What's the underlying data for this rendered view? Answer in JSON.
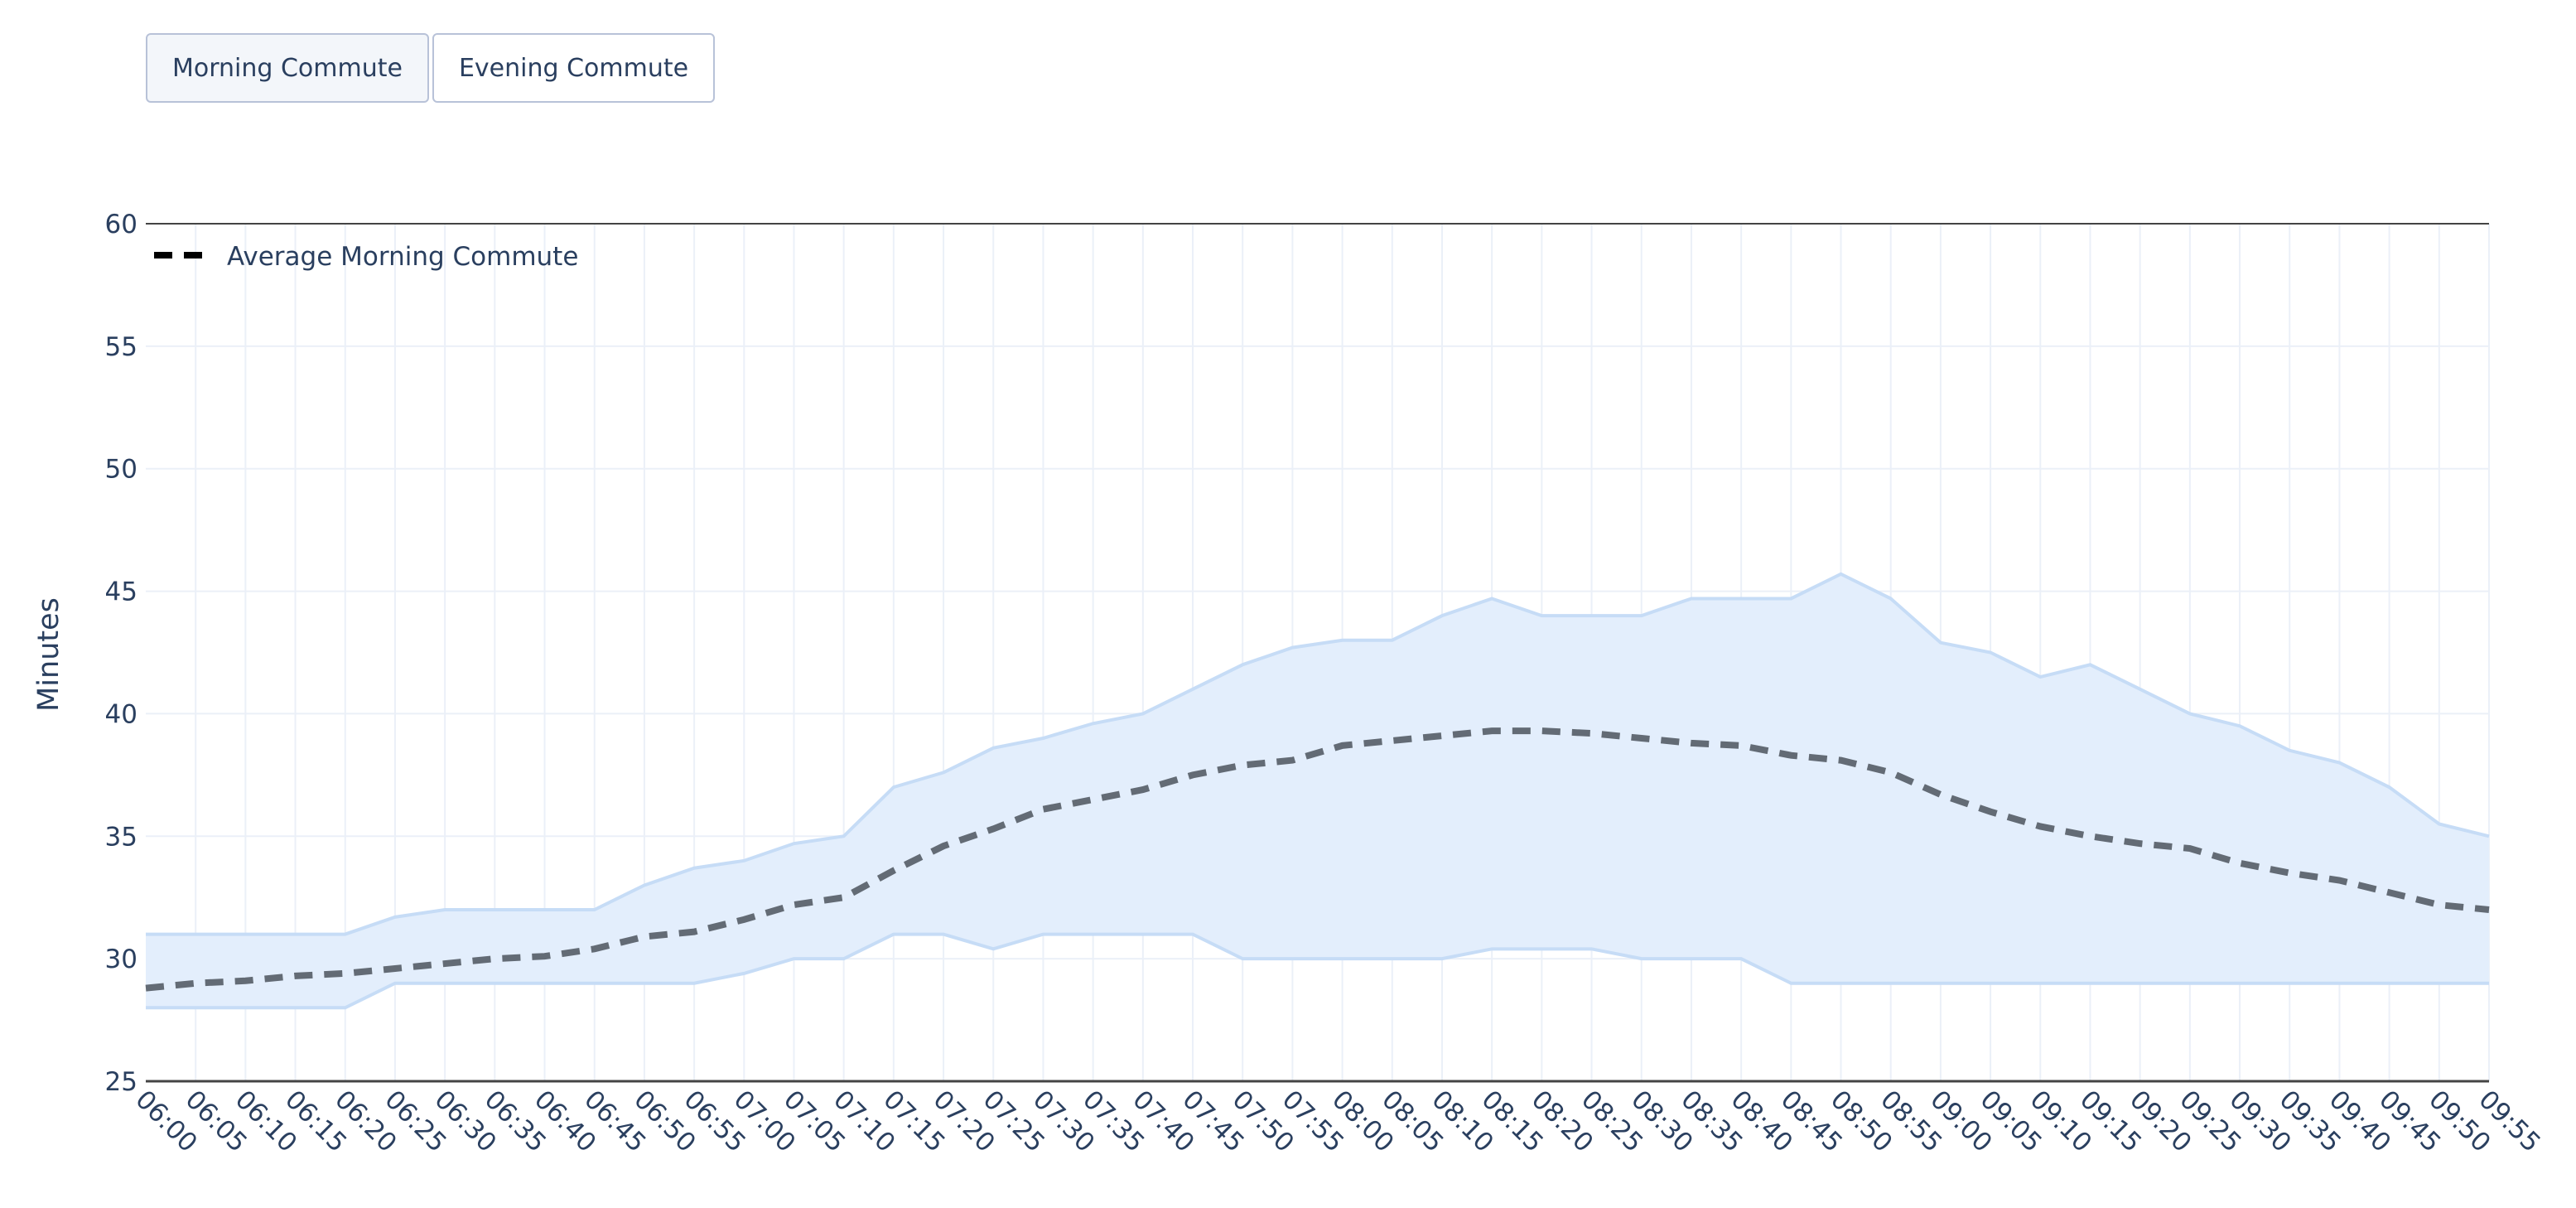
{
  "buttons": [
    {
      "label": "Morning Commute",
      "active": true
    },
    {
      "label": "Evening Commute",
      "active": false
    }
  ],
  "chart_data": {
    "type": "area",
    "title": "",
    "xlabel": "",
    "ylabel": "Minutes",
    "ylim": [
      25,
      60
    ],
    "yticks": [
      25,
      30,
      35,
      40,
      45,
      50,
      55,
      60
    ],
    "grid": true,
    "legend_placement": "top-left",
    "x": [
      "06:00",
      "06:05",
      "06:10",
      "06:15",
      "06:20",
      "06:25",
      "06:30",
      "06:35",
      "06:40",
      "06:45",
      "06:50",
      "06:55",
      "07:00",
      "07:05",
      "07:10",
      "07:15",
      "07:20",
      "07:25",
      "07:30",
      "07:35",
      "07:40",
      "07:45",
      "07:50",
      "07:55",
      "08:00",
      "08:05",
      "08:10",
      "08:15",
      "08:20",
      "08:25",
      "08:30",
      "08:35",
      "08:40",
      "08:45",
      "08:50",
      "08:55",
      "09:00",
      "09:05",
      "09:10",
      "09:15",
      "09:20",
      "09:25",
      "09:30",
      "09:35",
      "09:40",
      "09:45",
      "09:50",
      "09:55"
    ],
    "series": [
      {
        "name": "Average Morning Commute",
        "style": "dashed",
        "color": "#636b75",
        "values": [
          28.8,
          29.0,
          29.1,
          29.3,
          29.4,
          29.6,
          29.8,
          30.0,
          30.1,
          30.4,
          30.9,
          31.1,
          31.6,
          32.2,
          32.5,
          33.6,
          34.6,
          35.3,
          36.1,
          36.5,
          36.9,
          37.5,
          37.9,
          38.1,
          38.7,
          38.9,
          39.1,
          39.3,
          39.3,
          39.2,
          39.0,
          38.8,
          38.7,
          38.3,
          38.1,
          37.6,
          36.7,
          36.0,
          35.4,
          35.0,
          34.7,
          34.5,
          33.9,
          33.5,
          33.2,
          32.7,
          32.2,
          32.0
        ]
      },
      {
        "name": "upper",
        "role": "range-upper",
        "values": [
          31,
          31,
          31,
          31,
          31,
          31.7,
          32,
          32,
          32,
          32,
          33,
          33.7,
          34,
          34.7,
          35,
          37,
          37.6,
          38.6,
          39,
          39.6,
          40,
          41,
          42,
          42.7,
          43,
          43,
          44,
          44.7,
          44,
          44,
          44,
          44.7,
          44.7,
          44.7,
          45.7,
          44.7,
          42.9,
          42.5,
          41.5,
          42,
          41,
          40,
          39.5,
          38.5,
          38,
          37,
          35.5,
          35
        ]
      },
      {
        "name": "lower",
        "role": "range-lower",
        "values": [
          28,
          28,
          28,
          28,
          28,
          29,
          29,
          29,
          29,
          29,
          29,
          29,
          29.4,
          30,
          30,
          31,
          31,
          30.4,
          31,
          31,
          31,
          31,
          30,
          30,
          30,
          30,
          30,
          30.4,
          30.4,
          30.4,
          30,
          30,
          30,
          29,
          29,
          29,
          29,
          29,
          29,
          29,
          29,
          29,
          29,
          29,
          29,
          29,
          29,
          29
        ]
      }
    ],
    "band_color": "#e3eefc",
    "band_line_color": "#c6dcf6"
  }
}
